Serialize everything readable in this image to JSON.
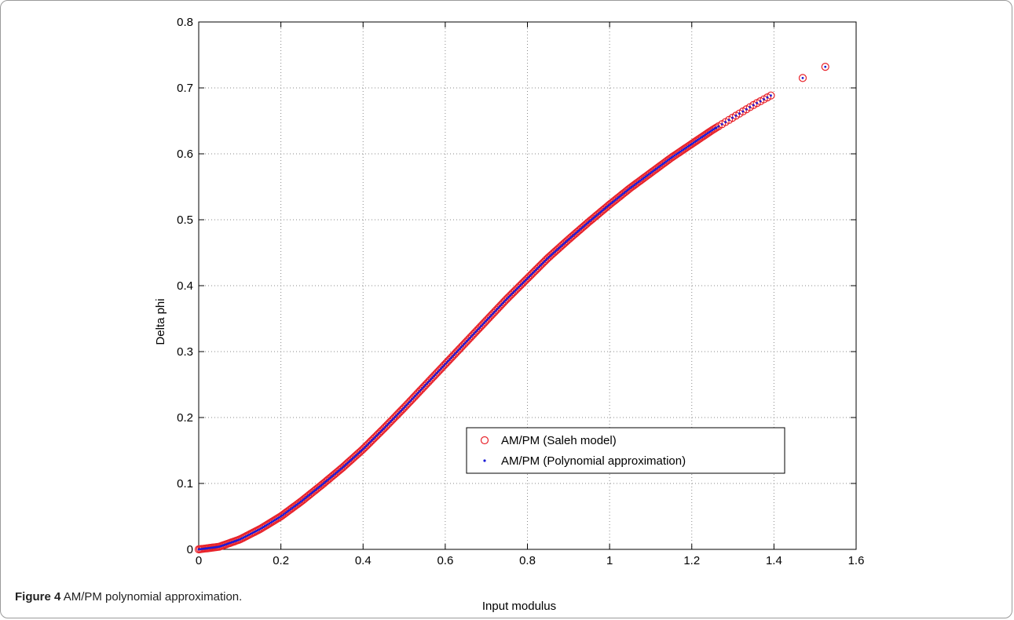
{
  "caption": {
    "label": "Figure 4",
    "text": "AM/PM polynomial approximation."
  },
  "chart_data": {
    "type": "scatter",
    "xlabel": "Input modulus",
    "ylabel": "Delta phi",
    "xlim": [
      0,
      1.6
    ],
    "ylim": [
      0,
      0.8
    ],
    "xticks": [
      "0",
      "0.2",
      "0.4",
      "0.6",
      "0.8",
      "1",
      "1.2",
      "1.4",
      "1.6"
    ],
    "yticks": [
      "0",
      "0.1",
      "0.2",
      "0.3",
      "0.4",
      "0.5",
      "0.6",
      "0.7",
      "0.8"
    ],
    "grid": true,
    "legend_position": "lower-right",
    "series": [
      {
        "name": "AM/PM (Saleh model)",
        "marker": "open-circle",
        "color": "#e8222a"
      },
      {
        "name": "AM/PM (Polynomial approximation)",
        "marker": "dot",
        "color": "#1a1ad6"
      }
    ],
    "curve": {
      "x": [
        0,
        0.05,
        0.1,
        0.15,
        0.2,
        0.25,
        0.3,
        0.35,
        0.4,
        0.45,
        0.5,
        0.55,
        0.6,
        0.65,
        0.7,
        0.75,
        0.8,
        0.85,
        0.9,
        0.95,
        1.0,
        1.05,
        1.1,
        1.15,
        1.2,
        1.25,
        1.3,
        1.35,
        1.4
      ],
      "y": [
        0,
        0.004,
        0.015,
        0.031,
        0.05,
        0.073,
        0.098,
        0.124,
        0.152,
        0.183,
        0.215,
        0.248,
        0.281,
        0.314,
        0.347,
        0.38,
        0.411,
        0.442,
        0.47,
        0.497,
        0.523,
        0.548,
        0.571,
        0.594,
        0.615,
        0.636,
        0.655,
        0.674,
        0.691
      ]
    },
    "outliers": {
      "x": [
        1.47,
        1.525
      ],
      "y": [
        0.715,
        0.732
      ]
    }
  }
}
